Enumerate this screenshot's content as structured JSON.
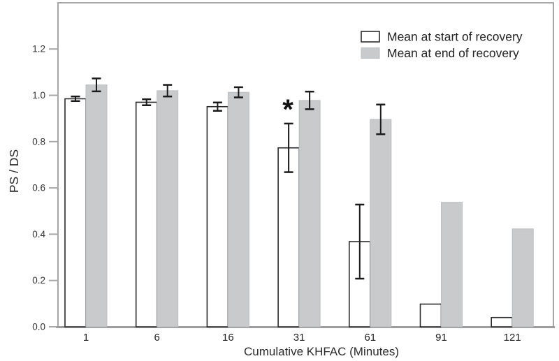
{
  "figure": {
    "background": "#ffffff",
    "frame_color": "#a6a6a6",
    "text_color": "#2b2b2b"
  },
  "chart_data": {
    "type": "bar",
    "title": "",
    "xlabel": "Cumulative KHFAC (Minutes)",
    "ylabel": "PS / DS",
    "categories": [
      "1",
      "6",
      "16",
      "31",
      "61",
      "91",
      "121"
    ],
    "series": [
      {
        "name": "Mean at start of recovery",
        "values": [
          0.985,
          0.97,
          0.951,
          0.773,
          0.368,
          0.098,
          0.04
        ],
        "errors": [
          0.01,
          0.013,
          0.018,
          0.105,
          0.16,
          null,
          null
        ],
        "fill": "#ffffff",
        "stroke": "#2b2b2b"
      },
      {
        "name": "Mean at end of recovery",
        "values": [
          1.045,
          1.02,
          1.013,
          0.978,
          0.896,
          0.538,
          0.423
        ],
        "errors": [
          0.028,
          0.025,
          0.022,
          0.038,
          0.064,
          null,
          null
        ],
        "fill": "#c9cacc",
        "stroke": "#bcbdbf"
      }
    ],
    "annotations": [
      {
        "type": "significance-star",
        "symbol": "*",
        "series": 0,
        "category_index": 3
      }
    ],
    "y_ticks": [
      0.0,
      0.2,
      0.4,
      0.6,
      0.8,
      1.0,
      1.2
    ],
    "y_tick_labels": [
      "0.0",
      "0.2",
      "0.4",
      "0.6",
      "0.8",
      "1.0",
      "1.2"
    ],
    "ylim": [
      0,
      1.4
    ],
    "grid": false,
    "legend_position": "top-right",
    "error_color": "#1a1a1a"
  }
}
